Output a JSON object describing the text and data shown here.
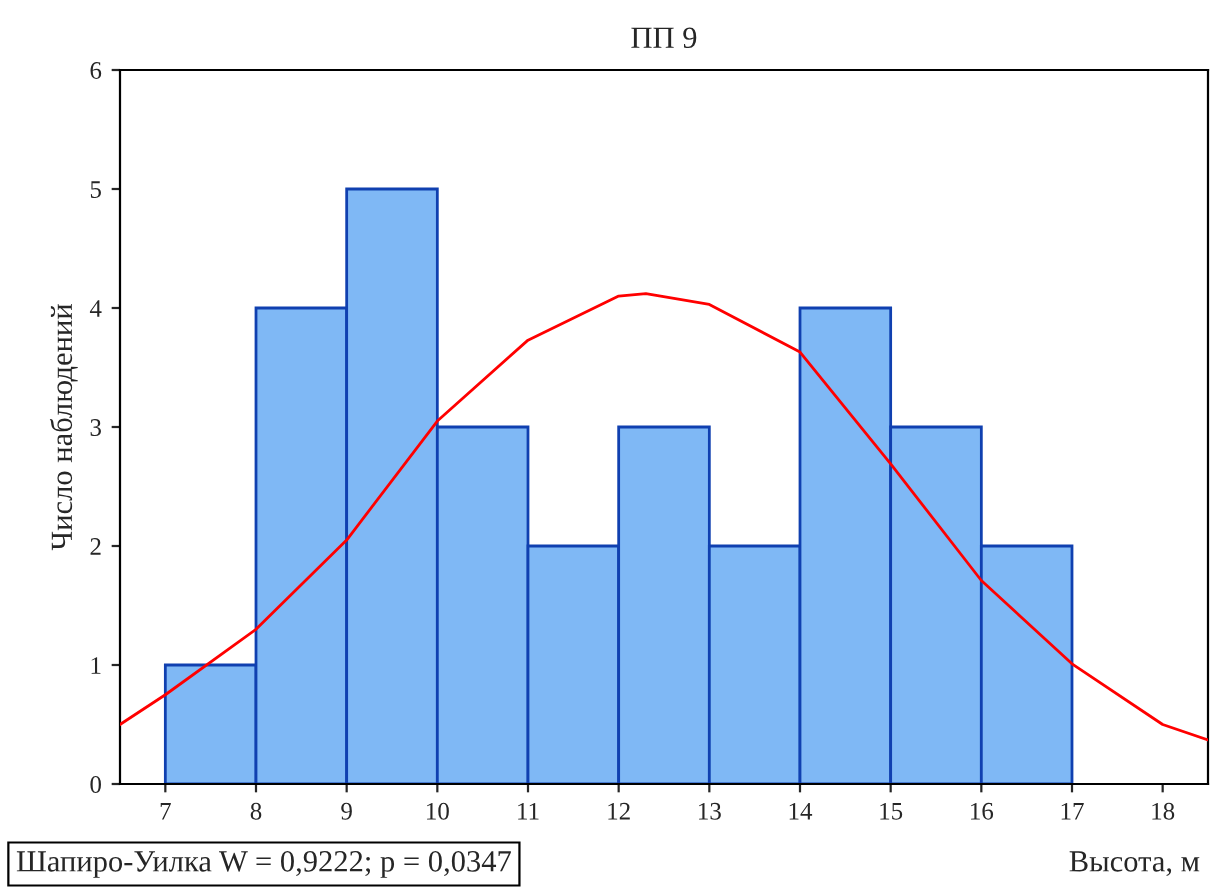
{
  "chart_data": {
    "type": "histogram",
    "title": "ПП 9",
    "xlabel": "Высота, м",
    "ylabel": "Число наблюдений",
    "bins": [
      7,
      8,
      9,
      10,
      11,
      12,
      13,
      14,
      15,
      16,
      17
    ],
    "values": [
      1,
      4,
      5,
      3,
      2,
      3,
      2,
      4,
      3,
      2
    ],
    "color": "#7fb8f5",
    "series": [
      {
        "type": "line",
        "color": "#ff0000",
        "x": [
          6.5,
          7,
          8,
          9,
          10,
          11,
          12,
          12.3,
          13,
          14,
          15,
          16,
          17,
          18,
          18.5
        ],
        "values": [
          0.5,
          0.75,
          1.3,
          2.05,
          3.05,
          3.73,
          4.1,
          4.12,
          4.03,
          3.63,
          2.69,
          1.71,
          1.01,
          0.5,
          0.37
        ]
      }
    ],
    "xlim": [
      6.5,
      18.5
    ],
    "xticks": [
      7,
      8,
      9,
      10,
      11,
      12,
      13,
      14,
      15,
      16,
      17,
      18
    ],
    "ylim": [
      0,
      6
    ],
    "yticks": [
      0,
      1,
      2,
      3,
      4,
      5,
      6
    ],
    "annotations": [
      "Шапиро-Уилка W = 0,9222; p = 0,0347"
    ]
  }
}
